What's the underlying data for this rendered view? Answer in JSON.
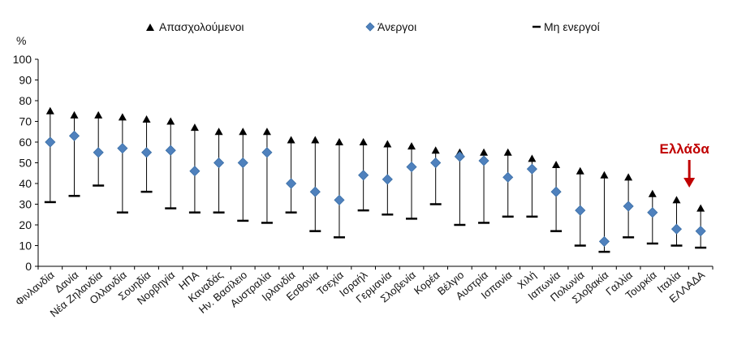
{
  "chart_data": {
    "type": "scatter",
    "unit_label": "%",
    "ylim": [
      0,
      100
    ],
    "y_ticks": [
      "0",
      "10",
      "20",
      "30",
      "40",
      "50",
      "60",
      "70",
      "80",
      "90",
      "100"
    ],
    "categories": [
      "Φινλανδία",
      "Δανία",
      "Νέα Ζηλανδία",
      "Ολλανδία",
      "Σουηδία",
      "Νορβηγία",
      "ΗΠΑ",
      "Καναδάς",
      "Ην. Βασίλειο",
      "Αυστραλία",
      "Ιρλανδία",
      "Εσθονία",
      "Τσεχία",
      "Ισραήλ",
      "Γερμανία",
      "Σλοβενία",
      "Κορέα",
      "Βέλγιο",
      "Αυστρία",
      "Ισπανία",
      "Χιλή",
      "Ιαπωνία",
      "Πολωνία",
      "Σλοβακία",
      "Γαλλία",
      "Τουρκία",
      "Ιταλία",
      "ΕΛΛΑΔΑ"
    ],
    "series": [
      {
        "name": "Απασχολούμενοι",
        "marker": "triangle",
        "color": "#000000",
        "values": [
          75,
          73,
          73,
          72,
          71,
          70,
          67,
          65,
          65,
          65,
          61,
          61,
          60,
          60,
          59,
          58,
          56,
          55,
          55,
          55,
          52,
          49,
          46,
          44,
          43,
          35,
          32,
          28
        ]
      },
      {
        "name": "Άνεργοι",
        "marker": "diamond",
        "color": "#4f81bd",
        "values": [
          60,
          63,
          55,
          57,
          55,
          56,
          46,
          50,
          50,
          55,
          40,
          36,
          32,
          44,
          42,
          48,
          50,
          53,
          51,
          43,
          47,
          36,
          27,
          12,
          29,
          26,
          18,
          17
        ]
      },
      {
        "name": "Μη ενεργοί",
        "marker": "dash",
        "color": "#000000",
        "values": [
          31,
          34,
          39,
          26,
          36,
          28,
          26,
          26,
          22,
          21,
          26,
          17,
          14,
          27,
          25,
          23,
          30,
          20,
          21,
          24,
          24,
          17,
          10,
          7,
          14,
          11,
          10,
          9
        ]
      }
    ],
    "annotation": {
      "text": "Ελλάδα",
      "target": "ΕΛΛΑΔΑ",
      "color": "#c00000"
    }
  }
}
